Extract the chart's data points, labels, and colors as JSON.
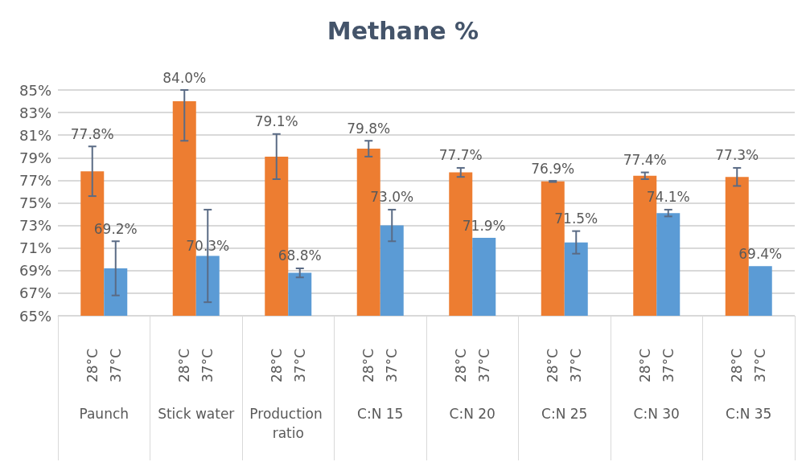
{
  "chart_data": {
    "type": "bar",
    "title": "Methane %",
    "categories": [
      "Paunch",
      "Stick water",
      "Production ratio",
      "C:N 15",
      "C:N 20",
      "C:N 25",
      "C:N 30",
      "C:N 35"
    ],
    "series": [
      {
        "name": "28°C",
        "color": "#ed7d31",
        "values": [
          77.8,
          84.0,
          79.1,
          79.8,
          77.7,
          76.9,
          77.4,
          77.3
        ],
        "errors": [
          2.2,
          [
            80.5,
            85
          ],
          2.0,
          0.7,
          0.4,
          0.05,
          0.3,
          0.8
        ],
        "value_labels": [
          "77.8%",
          "84.0%",
          "79.1%",
          "79.8%",
          "77.7%",
          "76.9%",
          "77.4%",
          "77.3%"
        ]
      },
      {
        "name": "37°C",
        "color": "#5b9bd5",
        "values": [
          69.2,
          70.3,
          68.8,
          73.0,
          71.9,
          71.5,
          74.1,
          69.4
        ],
        "errors": [
          2.4,
          4.1,
          0.4,
          1.4,
          null,
          1.0,
          0.3,
          null
        ],
        "value_labels": [
          "69.2%",
          "70.3%",
          "68.8%",
          "73.0%",
          "71.9%",
          "71.5%",
          "74.1%",
          "69.4%"
        ]
      }
    ],
    "ylim": [
      65,
      85
    ],
    "yticks": [
      {
        "value": 65,
        "label": "65%"
      },
      {
        "value": 67,
        "label": "67%"
      },
      {
        "value": 69,
        "label": "69%"
      },
      {
        "value": 71,
        "label": "71%"
      },
      {
        "value": 73,
        "label": "73%"
      },
      {
        "value": 75,
        "label": "75%"
      },
      {
        "value": 77,
        "label": "77%"
      },
      {
        "value": 79,
        "label": "79%"
      },
      {
        "value": 81,
        "label": "81%"
      },
      {
        "value": 83,
        "label": "83%"
      },
      {
        "value": 85,
        "label": "85%"
      }
    ],
    "grid": "y",
    "legend": false
  }
}
